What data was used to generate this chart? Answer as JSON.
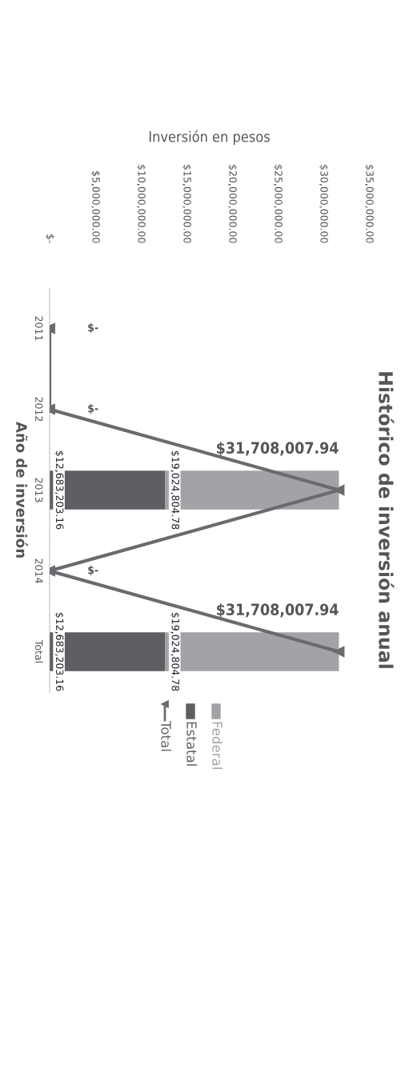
{
  "chart_data": {
    "type": "bar",
    "orientation": "horizontal",
    "stacked": true,
    "title": "Histórico de inversión anual",
    "xlabel": "Inversión en pesos",
    "ylabel": "Año de inversión",
    "categories": [
      "2011",
      "2012",
      "2013",
      "2014",
      "Total"
    ],
    "series": [
      {
        "name": "Estatal",
        "color": "#5f5f63",
        "values": [
          0,
          0,
          12683203.16,
          0,
          12683203.16
        ],
        "value_labels": [
          null,
          null,
          "$12,683,203.16",
          null,
          "$12,683,203.16"
        ]
      },
      {
        "name": "Federal",
        "color": "#a3a3a7",
        "values": [
          0,
          0,
          19024804.78,
          0,
          19024804.78
        ],
        "value_labels": [
          null,
          null,
          "$19,024,804.78",
          null,
          "$19,024,804.78"
        ]
      },
      {
        "name": "Total",
        "type": "line",
        "color": "#6a6a6f",
        "marker": "triangle",
        "values": [
          0,
          0,
          31708007.94,
          0,
          31708007.94
        ],
        "value_labels": [
          "$-",
          "$-",
          "$31,708,007.94",
          "$-",
          "$31,708,007.94"
        ]
      }
    ],
    "xlim": [
      0,
      35000000
    ],
    "xticks": [
      {
        "value": 0,
        "label": "$-"
      },
      {
        "value": 5000000,
        "label": "$5,000,000.00"
      },
      {
        "value": 10000000,
        "label": "$10,000,000.00"
      },
      {
        "value": 15000000,
        "label": "$15,000,000.00"
      },
      {
        "value": 20000000,
        "label": "$20,000,000.00"
      },
      {
        "value": 25000000,
        "label": "$25,000,000.00"
      },
      {
        "value": 30000000,
        "label": "$30,000,000.00"
      },
      {
        "value": 35000000,
        "label": "$35,000,000.00"
      }
    ],
    "legend": "bottom"
  }
}
